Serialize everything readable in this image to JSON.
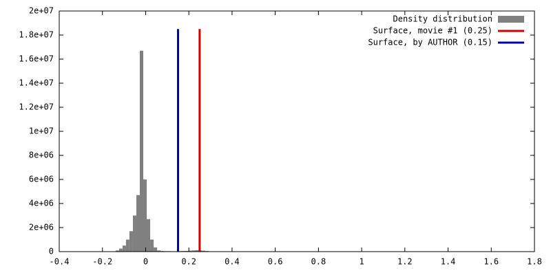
{
  "chart_data": {
    "type": "histogram",
    "name": "Density distribution",
    "color": "#808080",
    "bins": [
      -0.155,
      -0.139,
      -0.123,
      -0.107,
      -0.091,
      -0.075,
      -0.059,
      -0.043,
      -0.027,
      -0.011,
      0.005,
      0.021,
      0.037,
      0.053,
      0.069,
      0.085,
      0.101,
      0.117,
      0.133,
      0.149,
      0.165,
      0.181,
      0.197,
      0.213,
      0.229,
      0.245,
      0.261,
      0.277,
      0.293,
      0.309
    ],
    "values": [
      20000,
      100000,
      250000,
      500000,
      1000000,
      1700000,
      3000000,
      4700000,
      16700000,
      6000000,
      2700000,
      1000000,
      350000,
      100000,
      50000,
      40000,
      40000,
      30000,
      30000,
      40000,
      50000,
      60000,
      80000,
      100000,
      120000,
      100000,
      80000,
      50000,
      20000
    ],
    "lines": [
      {
        "name": "Surface, movie #1 (0.25)",
        "color": "#cc0000",
        "x": 0.25,
        "y": 18500000
      },
      {
        "name": "Surface, by AUTHOR (0.15)",
        "color": "#0000aa",
        "x": 0.15,
        "y": 18500000
      }
    ],
    "xlim": [
      -0.4,
      1.8
    ],
    "xticks": [
      -0.4,
      -0.2,
      0,
      0.2,
      0.4,
      0.6,
      0.8,
      1,
      1.2,
      1.4,
      1.6,
      1.8
    ],
    "ylim": [
      0,
      20000000
    ],
    "yticks": [
      0,
      {
        "value": 2000000,
        "label": "2e+06"
      },
      {
        "value": 4000000,
        "label": "4e+06"
      },
      {
        "value": 6000000,
        "label": "6e+06"
      },
      {
        "value": 8000000,
        "label": "8e+06"
      },
      {
        "value": 10000000,
        "label": "1e+07"
      },
      {
        "value": 12000000,
        "label": "1.2e+07"
      },
      {
        "value": 14000000,
        "label": "1.4e+07"
      },
      {
        "value": 16000000,
        "label": "1.6e+07"
      },
      {
        "value": 18000000,
        "label": "1.8e+07"
      },
      {
        "value": 20000000,
        "label": "2e+07"
      }
    ],
    "legend": "top-right"
  }
}
